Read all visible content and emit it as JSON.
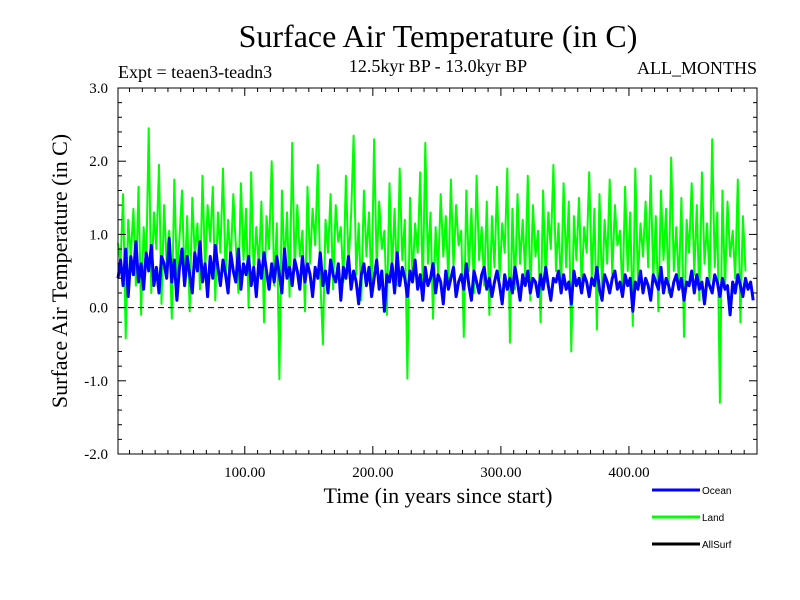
{
  "chart_data": {
    "type": "line",
    "title": "Surface Air Temperature (in C)",
    "subtitle_left": "Expt = teaen3-teadn3",
    "subtitle_center": "12.5kyr BP - 13.0kyr BP",
    "subtitle_right": "ALL_MONTHS",
    "xlabel": "Time (in years since start)",
    "ylabel": "Surface Air Temperature (in C)",
    "xlim": [
      1,
      500
    ],
    "ylim": [
      -2.0,
      3.0
    ],
    "x_ticks": [
      {
        "value": 100,
        "label": "100.00"
      },
      {
        "value": 200,
        "label": "200.00"
      },
      {
        "value": 300,
        "label": "300.00"
      },
      {
        "value": 400,
        "label": "400.00"
      }
    ],
    "y_ticks": [
      {
        "value": 3.0,
        "label": "3.0"
      },
      {
        "value": 2.0,
        "label": "2.0"
      },
      {
        "value": 1.0,
        "label": "1.0"
      },
      {
        "value": 0.0,
        "label": "0.0"
      },
      {
        "value": -1.0,
        "label": "-1.0"
      },
      {
        "value": -2.0,
        "label": "-2.0"
      }
    ],
    "zero_line": 0.0,
    "series": [
      {
        "name": "Land",
        "color": "#00ff00",
        "x_start": 1,
        "x_step": 2,
        "values": [
          0.88,
          0.62,
          1.55,
          -0.42,
          1.2,
          0.7,
          1.35,
          0.3,
          1.65,
          -0.1,
          1.1,
          0.55,
          2.45,
          0.2,
          1.3,
          0.8,
          1.95,
          0.05,
          1.4,
          0.6,
          1.05,
          -0.15,
          1.75,
          0.45,
          0.95,
          1.6,
          0.35,
          1.25,
          -0.05,
          1.5,
          0.7,
          1.15,
          0.25,
          1.8,
          0.5,
          1.4,
          0.9,
          1.65,
          0.1,
          1.3,
          0.75,
          1.9,
          0.4,
          1.2,
          0.6,
          1.55,
          0.85,
          0.2,
          1.7,
          0.65,
          1.35,
          0.0,
          1.85,
          0.45,
          1.1,
          0.55,
          1.45,
          -0.2,
          1.25,
          0.8,
          2.0,
          0.3,
          1.15,
          -0.98,
          1.6,
          0.55,
          1.3,
          0.15,
          2.25,
          0.5,
          1.4,
          0.7,
          1.05,
          -0.05,
          1.65,
          0.6,
          1.35,
          0.85,
          1.95,
          0.4,
          -0.5,
          1.2,
          0.75,
          1.55,
          0.25,
          1.4,
          0.9,
          1.1,
          0.35,
          1.8,
          0.6,
          1.25,
          2.35,
          0.45,
          1.15,
          0.1,
          1.6,
          0.7,
          1.3,
          0.2,
          2.3,
          0.55,
          1.45,
          0.8,
          1.05,
          -0.1,
          1.7,
          0.5,
          1.35,
          0.3,
          1.9,
          0.65,
          1.2,
          -0.97,
          1.5,
          0.4,
          1.15,
          0.75,
          1.85,
          0.25,
          2.25,
          0.6,
          1.3,
          -0.15,
          1.1,
          0.45,
          1.55,
          0.7,
          1.25,
          0.35,
          1.75,
          0.55,
          1.4,
          0.85,
          1.05,
          -0.4,
          1.6,
          0.5,
          1.35,
          0.2,
          1.8,
          0.65,
          1.1,
          0.3,
          1.45,
          -0.1,
          1.25,
          0.55,
          1.65,
          0.4,
          1.15,
          0.75,
          1.9,
          -0.48,
          1.35,
          0.25,
          1.55,
          0.6,
          1.2,
          0.45,
          1.8,
          0.1,
          1.4,
          0.7,
          1.05,
          -0.2,
          1.6,
          0.35,
          1.3,
          0.8,
          1.95,
          0.5,
          1.15,
          0.25,
          1.7,
          0.55,
          1.45,
          -0.6,
          1.25,
          0.65,
          1.5,
          0.3,
          1.1,
          0.75,
          1.85,
          0.4,
          1.35,
          -0.3,
          1.55,
          0.2,
          1.2,
          0.6,
          1.75,
          0.45,
          1.4,
          0.85,
          1.05,
          0.15,
          1.65,
          0.5,
          1.3,
          -0.25,
          1.9,
          0.35,
          1.15,
          0.7,
          1.45,
          0.55,
          1.8,
          0.4,
          1.25,
          -0.05,
          1.6,
          0.65,
          1.35,
          0.2,
          2.05,
          0.5,
          1.1,
          0.3,
          1.5,
          -0.4,
          1.2,
          0.75,
          1.7,
          0.45,
          1.4,
          0.1,
          1.85,
          0.6,
          1.15,
          0.35,
          2.3,
          0.55,
          1.3,
          -1.3,
          1.6,
          0.25,
          1.45,
          0.7,
          1.05,
          0.4,
          1.75,
          -0.2,
          1.25,
          0.5
        ]
      },
      {
        "name": "Ocean",
        "color": "#0000ff",
        "x_start": 1,
        "x_step": 2,
        "values": [
          0.4,
          0.65,
          0.3,
          0.8,
          0.15,
          0.7,
          0.45,
          0.9,
          0.35,
          0.6,
          0.25,
          0.75,
          0.5,
          0.85,
          0.3,
          0.55,
          0.2,
          0.7,
          0.6,
          0.4,
          0.95,
          0.35,
          0.65,
          0.1,
          0.55,
          0.8,
          0.3,
          0.7,
          0.45,
          0.2,
          0.75,
          0.5,
          0.9,
          0.35,
          0.6,
          0.15,
          0.7,
          0.4,
          0.85,
          0.55,
          0.3,
          0.65,
          0.45,
          0.2,
          0.75,
          0.5,
          0.35,
          0.8,
          0.25,
          0.6,
          0.45,
          0.7,
          0.3,
          0.55,
          0.15,
          0.65,
          0.4,
          0.75,
          0.5,
          0.25,
          0.6,
          0.35,
          0.7,
          0.45,
          0.2,
          0.8,
          0.4,
          0.55,
          0.3,
          0.65,
          0.5,
          0.25,
          0.7,
          0.35,
          0.6,
          0.45,
          0.15,
          0.55,
          0.4,
          0.75,
          0.3,
          0.5,
          0.2,
          0.65,
          0.45,
          0.35,
          0.6,
          0.1,
          0.55,
          0.4,
          0.7,
          0.25,
          0.5,
          0.35,
          0.05,
          0.45,
          0.6,
          0.3,
          0.55,
          0.15,
          0.4,
          0.65,
          0.25,
          0.5,
          -0.05,
          0.45,
          0.35,
          0.6,
          0.2,
          0.75,
          0.3,
          0.55,
          0.4,
          0.15,
          0.5,
          0.35,
          0.65,
          0.25,
          0.45,
          0.1,
          0.55,
          0.3,
          0.4,
          0.6,
          0.2,
          0.45,
          0.35,
          0.05,
          0.5,
          0.25,
          0.4,
          0.55,
          0.15,
          0.35,
          0.45,
          0.25,
          0.6,
          0.3,
          0.1,
          0.5,
          0.35,
          0.2,
          0.45,
          0.55,
          0.25,
          0.4,
          0.15,
          0.35,
          0.5,
          0.3,
          0.05,
          0.45,
          0.25,
          0.4,
          0.2,
          0.55,
          0.35,
          0.1,
          0.45,
          0.3,
          0.5,
          0.2,
          0.4,
          0.35,
          0.15,
          0.45,
          0.25,
          0.55,
          0.3,
          0.1,
          0.4,
          0.35,
          0.5,
          0.2,
          0.45,
          0.25,
          0.35,
          0.05,
          0.5,
          0.3,
          0.4,
          0.2,
          0.45,
          0.35,
          0.15,
          0.4,
          0.3,
          0.55,
          0.25,
          0.1,
          0.45,
          0.35,
          0.2,
          0.4,
          0.5,
          0.25,
          0.35,
          0.15,
          0.45,
          0.3,
          0.4,
          -0.05,
          0.35,
          0.25,
          0.5,
          0.2,
          0.4,
          0.3,
          0.1,
          0.45,
          0.35,
          0.25,
          0.55,
          0.2,
          0.4,
          0.3,
          0.15,
          0.35,
          0.45,
          0.25,
          0.4,
          0.1,
          0.35,
          0.3,
          0.5,
          0.2,
          0.45,
          0.25,
          0.35,
          0.05,
          0.4,
          0.3,
          0.2,
          0.45,
          0.35,
          0.15,
          0.4,
          0.25,
          0.3,
          -0.1,
          0.35,
          0.2,
          0.45,
          0.3,
          0.15,
          0.4,
          0.25,
          0.35,
          0.1
        ]
      },
      {
        "name": "AllSurf",
        "color": "#000000",
        "values": []
      }
    ],
    "legend": [
      {
        "name": "Ocean",
        "color": "#0000ff"
      },
      {
        "name": "Land",
        "color": "#00ff00"
      },
      {
        "name": "AllSurf",
        "color": "#000000"
      }
    ],
    "legend_position": "bottom-right"
  }
}
